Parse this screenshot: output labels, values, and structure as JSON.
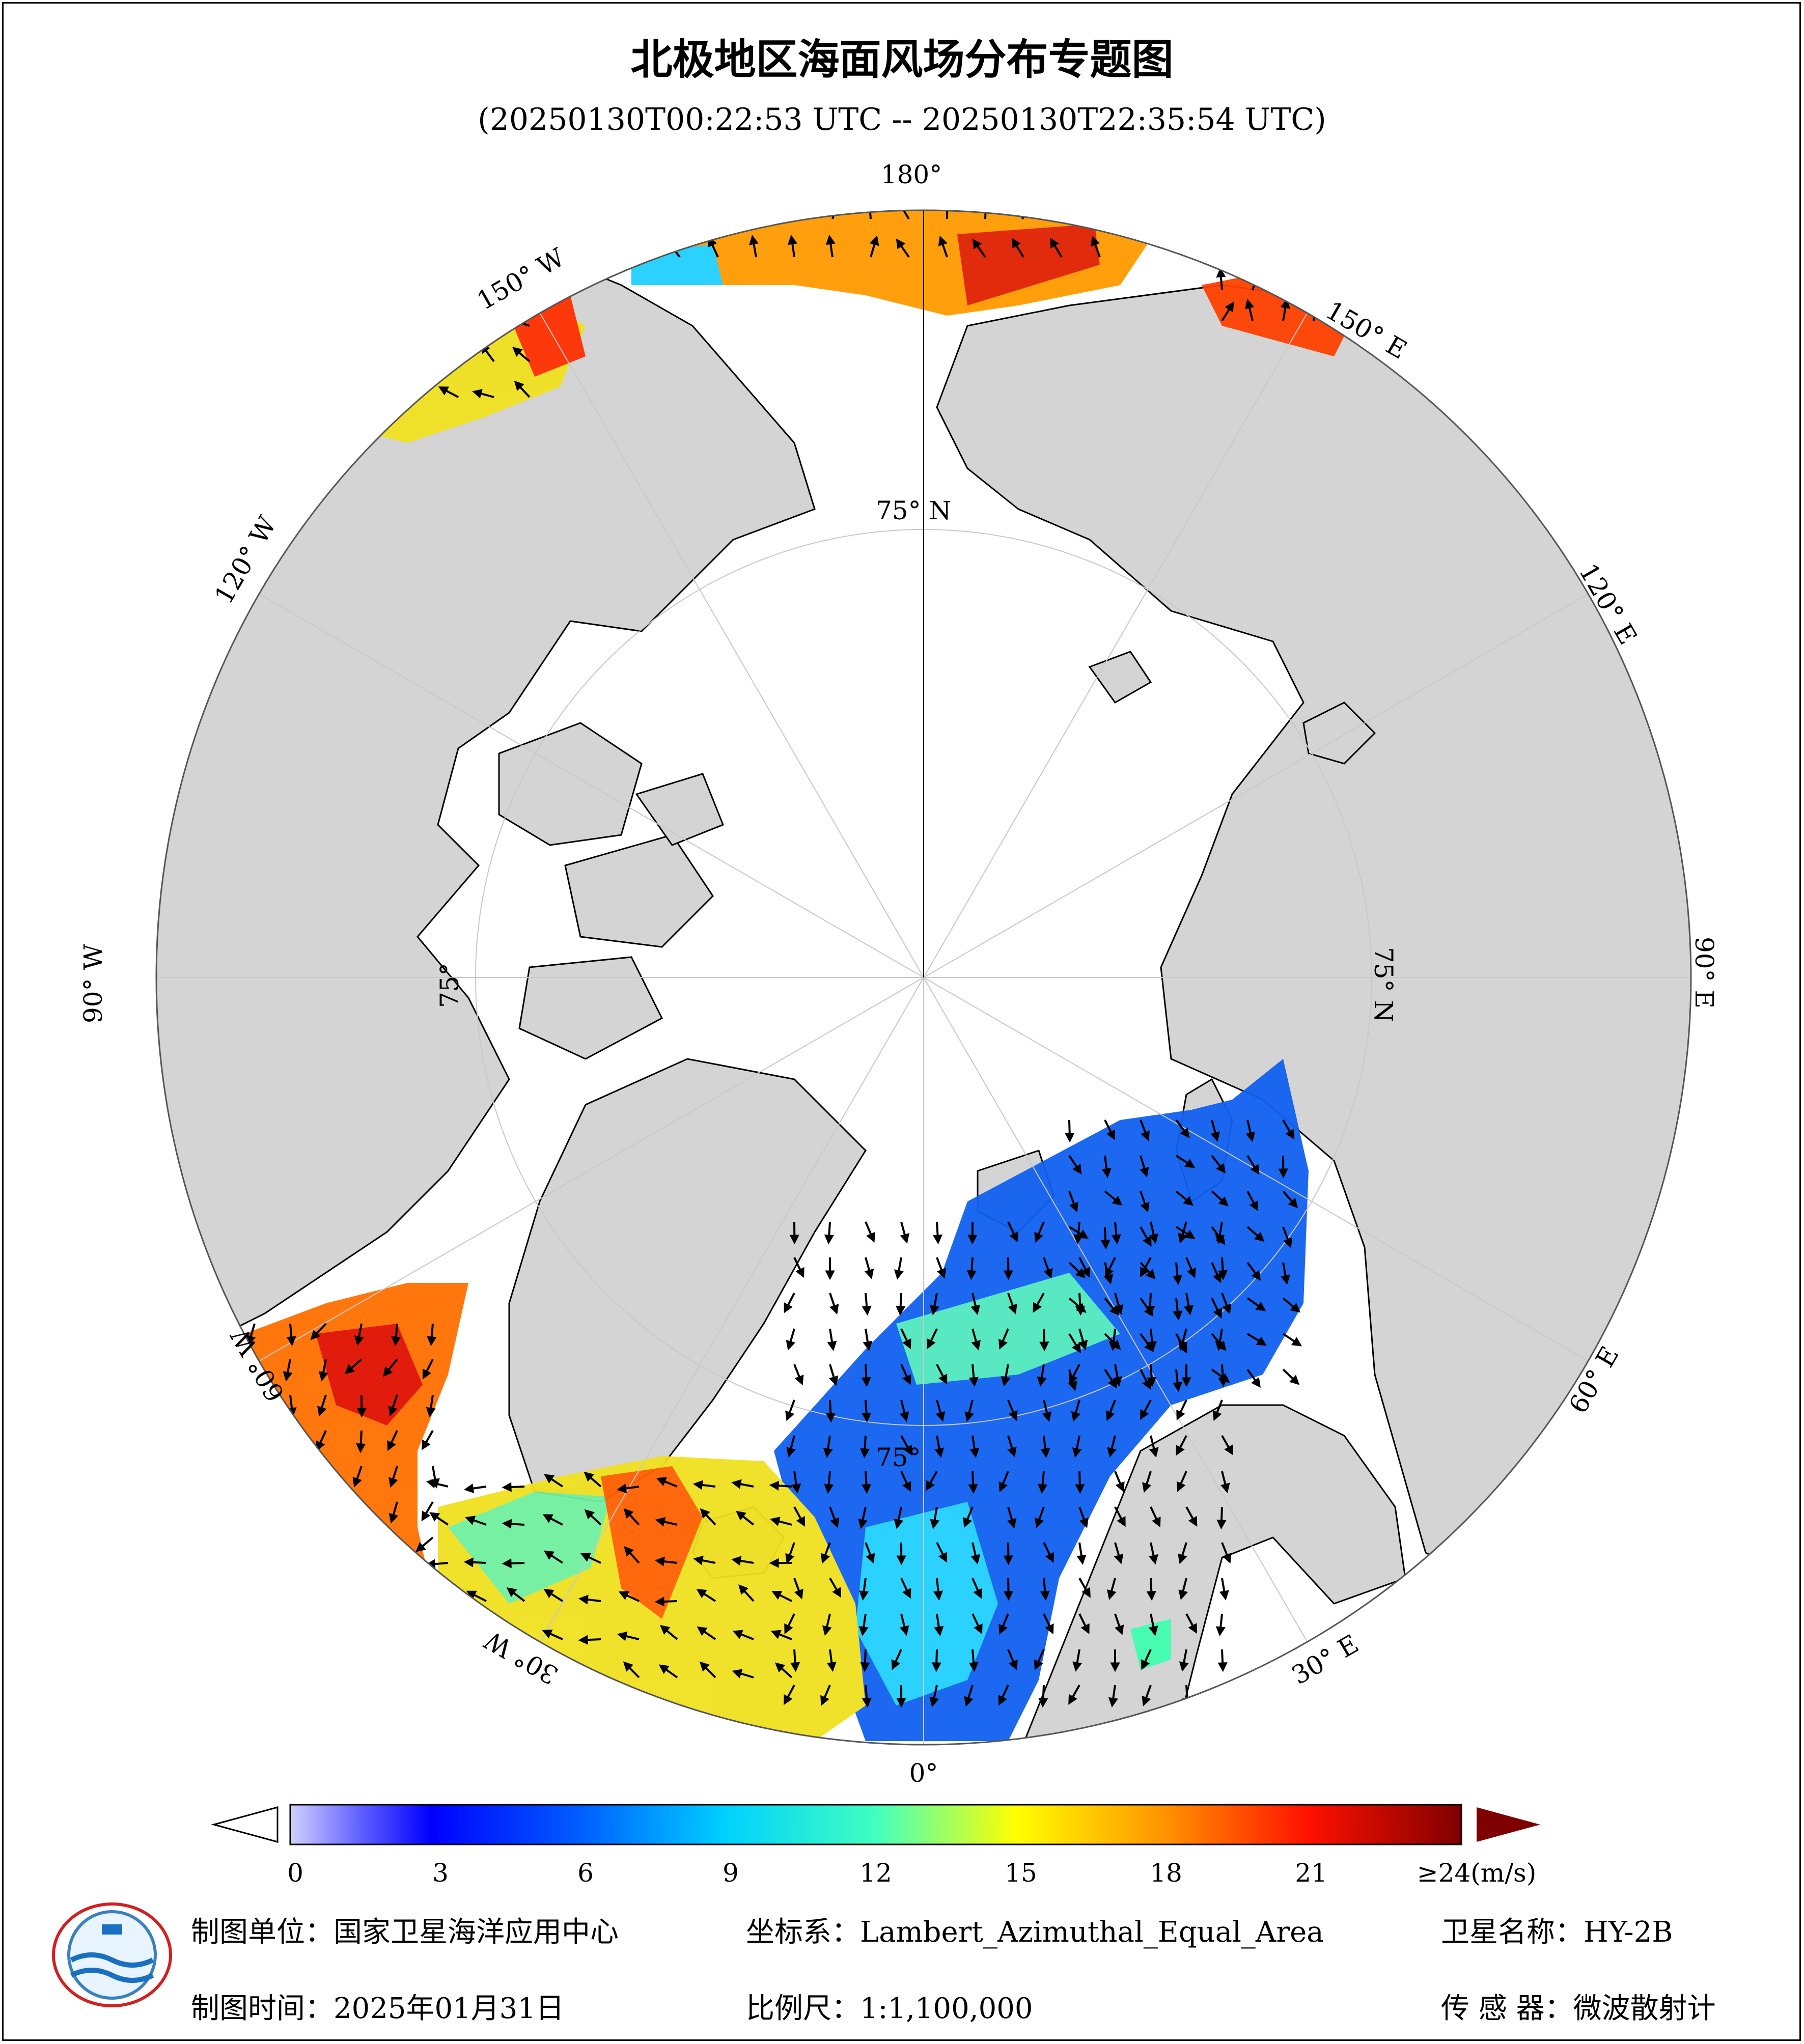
{
  "title": "北极地区海面风场分布专题图",
  "subtitle": "(20250130T00:22:53 UTC -- 20250130T22:35:54 UTC)",
  "map": {
    "projection": "Lambert_Azimuthal_Equal_Area",
    "center": "North Pole",
    "boundary_latitude_label": "75° N",
    "longitude_labels": {
      "lon_180": "180°",
      "lon_150e": "150° E",
      "lon_120e": "120° E",
      "lon_90e": "90° E",
      "lon_60e": "60° E",
      "lon_30e": "30° E",
      "lon_0": "0°",
      "lon_30w": "30° W",
      "lon_60w": "60° W",
      "lon_90w": "90° W",
      "lon_120w": "120° W",
      "lon_150w": "150° W"
    },
    "inner_lat_labels": [
      "75° N",
      "75° N",
      "75°",
      "75°"
    ],
    "colors": {
      "land": "#d4d4d4",
      "ocean_no_data": "#ffffff",
      "coastline": "#000000",
      "graticule": "#c8c8c8",
      "arrow": "#000000"
    }
  },
  "colorbar": {
    "unit_label": "≥24(m/s)",
    "ticks": [
      "0",
      "3",
      "6",
      "9",
      "12",
      "15",
      "18",
      "21"
    ],
    "min": 0,
    "max": 24,
    "underflow_color": "#ffffff",
    "overflow_color": "#7f0000"
  },
  "footer": {
    "producer": "制图单位：国家卫星海洋应用中心",
    "coordinate_system": "坐标系：Lambert_Azimuthal_Equal_Area",
    "satellite": "卫星名称：HY-2B",
    "date": "制图时间：2025年01月31日",
    "scale": "比例尺：1:1,100,000",
    "sensor": "传 感 器：微波散射计"
  },
  "logo": {
    "name": "National Satellite Ocean Application Service logo"
  }
}
